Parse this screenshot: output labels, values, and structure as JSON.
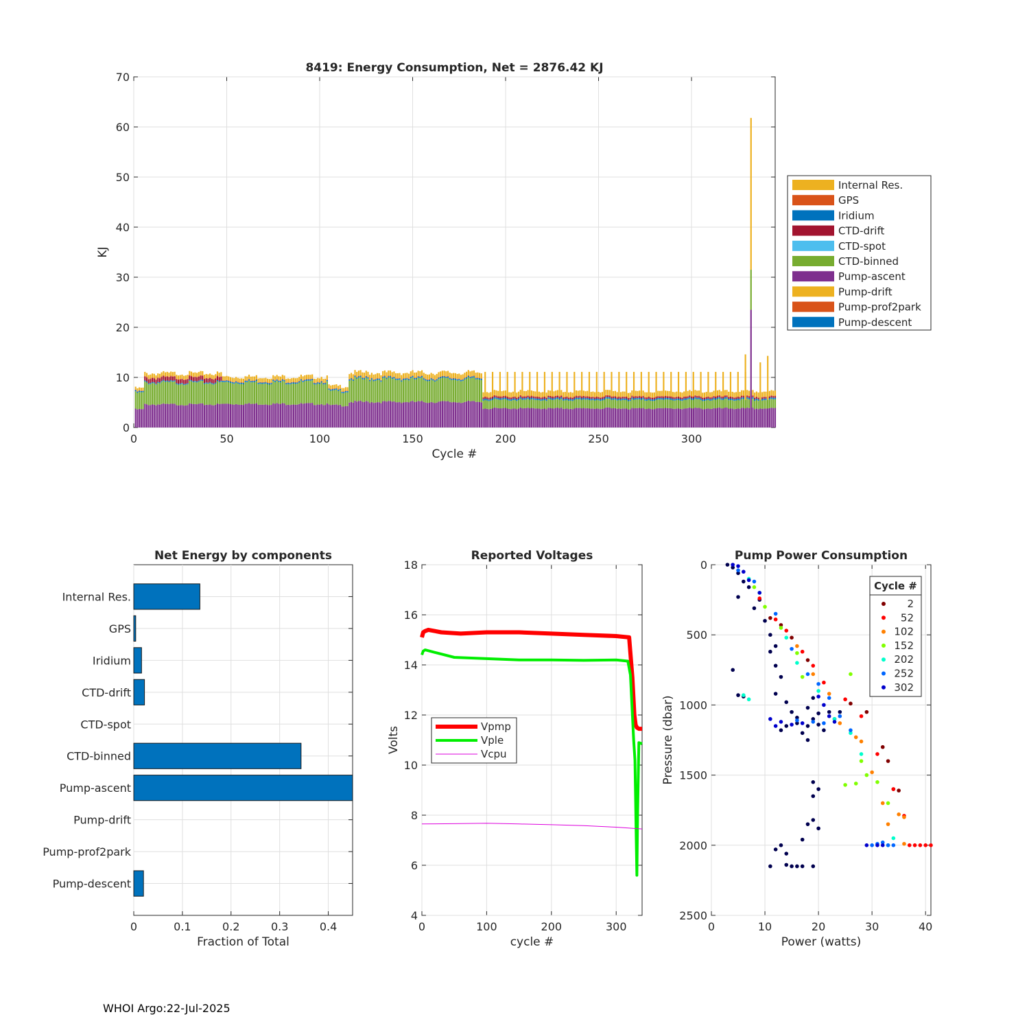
{
  "footer": "WHOI Argo:22-Jul-2025",
  "chart_data": [
    {
      "id": "energy",
      "type": "bar",
      "stacked": true,
      "title": "8419: Energy Consumption,  Net = 2876.42 KJ",
      "xlabel": "Cycle #",
      "ylabel": "KJ",
      "xlim": [
        0,
        345
      ],
      "ylim": [
        0,
        70
      ],
      "xticks": [
        0,
        50,
        100,
        150,
        200,
        250,
        300
      ],
      "yticks": [
        0,
        10,
        20,
        30,
        40,
        50,
        60,
        70
      ],
      "grid": true,
      "legend_placement": "outside-right",
      "series": [
        {
          "name": "Internal Res.",
          "color": "#EDB120"
        },
        {
          "name": "GPS",
          "color": "#D95319"
        },
        {
          "name": "Iridium",
          "color": "#0072BD"
        },
        {
          "name": "CTD-drift",
          "color": "#A2142F"
        },
        {
          "name": "CTD-spot",
          "color": "#4DBEEE"
        },
        {
          "name": "CTD-binned",
          "color": "#77AC30"
        },
        {
          "name": "Pump-ascent",
          "color": "#7E2F8E"
        },
        {
          "name": "Pump-drift",
          "color": "#EDB120"
        },
        {
          "name": "Pump-prof2park",
          "color": "#D95319"
        },
        {
          "name": "Pump-descent",
          "color": "#0072BD"
        }
      ],
      "segments": [
        {
          "cycles": [
            1,
            5
          ],
          "pump_ascent": 3.6,
          "ctd_binned": 3.3,
          "ctd_drift": 0.0,
          "iridium": 0.25,
          "gps": 0.1,
          "internal_res": 0.55,
          "total": 7.8
        },
        {
          "cycles": [
            6,
            47
          ],
          "pump_ascent": 4.6,
          "ctd_binned": 4.3,
          "ctd_drift": 0.8,
          "iridium": 0.2,
          "gps": 0.1,
          "internal_res": 0.8,
          "total": 10.8
        },
        {
          "cycles": [
            48,
            104
          ],
          "pump_ascent": 4.7,
          "ctd_binned": 4.3,
          "ctd_drift": 0.0,
          "iridium": 0.25,
          "gps": 0.1,
          "internal_res": 0.8,
          "total": 10.2
        },
        {
          "cycles": [
            105,
            115
          ],
          "pump_ascent": 4.4,
          "ctd_binned": 2.8,
          "ctd_drift": 0.0,
          "iridium": 0.25,
          "gps": 0.1,
          "internal_res": 0.7,
          "total": 8.3
        },
        {
          "cycles": [
            116,
            187
          ],
          "pump_ascent": 5.1,
          "ctd_binned": 4.5,
          "ctd_drift": 0.0,
          "iridium": 0.25,
          "gps": 0.1,
          "internal_res": 1.0,
          "total": 11.0
        },
        {
          "cycles": [
            188,
            345
          ],
          "pump_ascent": 3.8,
          "ctd_binned": 1.7,
          "ctd_drift": 0.3,
          "iridium": 0.3,
          "gps": 0.1,
          "internal_res": 1.0,
          "total": 7.2
        }
      ],
      "spikes": [
        {
          "cycle": 332,
          "pump_ascent": 23.5,
          "ctd_binned": 8.0,
          "internal_res": 30.3,
          "total": 61.8
        },
        {
          "cycle": 329,
          "total": 14.6
        },
        {
          "cycle": 341,
          "total": 14.3
        },
        {
          "cycle": 337,
          "total": 13.0
        }
      ],
      "long_cycle_totals": {
        "cycles": "189-330 every 4th",
        "total": 10.8
      }
    },
    {
      "id": "components",
      "type": "bar",
      "orientation": "horizontal",
      "title": "Net Energy by components",
      "xlabel": "Fraction of Total",
      "xlim": [
        0,
        0.45
      ],
      "xticks": [
        0,
        0.1,
        0.2,
        0.3,
        0.4
      ],
      "xtick_labels": [
        "0",
        "0.1",
        "0.2",
        "0.3",
        "0.4"
      ],
      "grid": true,
      "color": "#0072BD",
      "categories": [
        "Internal Res.",
        "GPS",
        "Iridium",
        "CTD-drift",
        "CTD-spot",
        "CTD-binned",
        "Pump-ascent",
        "Pump-drift",
        "Pump-prof2park",
        "Pump-descent"
      ],
      "values": [
        0.136,
        0.004,
        0.016,
        0.022,
        0.0,
        0.344,
        0.46,
        0.0,
        0.0,
        0.02
      ]
    },
    {
      "id": "voltages",
      "type": "line",
      "title": "Reported Voltages",
      "xlabel": "cycle #",
      "ylabel": "Volts",
      "xlim": [
        0,
        340
      ],
      "ylim": [
        4,
        18
      ],
      "xticks": [
        0,
        100,
        200,
        300
      ],
      "yticks": [
        4,
        6,
        8,
        10,
        12,
        14,
        16,
        18
      ],
      "grid": true,
      "legend_placement": "middle-left",
      "series": [
        {
          "name": "Vpmp",
          "color": "#FF0000",
          "width": 6,
          "x": [
            0,
            2,
            5,
            10,
            30,
            60,
            100,
            150,
            200,
            250,
            300,
            320,
            325,
            328,
            330,
            332,
            335,
            340
          ],
          "y": [
            15.1,
            15.3,
            15.35,
            15.4,
            15.3,
            15.25,
            15.3,
            15.3,
            15.25,
            15.2,
            15.15,
            15.1,
            13.5,
            12.0,
            11.6,
            11.5,
            11.45,
            11.45
          ]
        },
        {
          "name": "Vple",
          "color": "#00EE00",
          "width": 4,
          "x": [
            0,
            2,
            5,
            20,
            50,
            100,
            150,
            200,
            250,
            300,
            318,
            322,
            327,
            329,
            331,
            332,
            333,
            335,
            340
          ],
          "y": [
            14.4,
            14.55,
            14.6,
            14.5,
            14.3,
            14.25,
            14.2,
            14.2,
            14.18,
            14.2,
            14.15,
            13.6,
            11.0,
            10.2,
            7.0,
            5.6,
            8.0,
            10.9,
            10.85
          ]
        },
        {
          "name": "Vcpu",
          "color": "#DD00DD",
          "width": 1,
          "x": [
            0,
            50,
            100,
            150,
            200,
            250,
            300,
            340
          ],
          "y": [
            7.65,
            7.66,
            7.68,
            7.65,
            7.62,
            7.58,
            7.52,
            7.45
          ]
        }
      ]
    },
    {
      "id": "pump_power",
      "type": "scatter",
      "title": "Pump Power Consumption",
      "xlabel": "Power (watts)",
      "ylabel": "Pressure (dbar)",
      "xlim": [
        0,
        41
      ],
      "ylim": [
        0,
        2500
      ],
      "y_reversed": true,
      "xticks": [
        0,
        10,
        20,
        30,
        40
      ],
      "yticks": [
        0,
        500,
        1000,
        1500,
        2000,
        2500
      ],
      "grid": true,
      "legend_title": "Cycle #",
      "legend_placement": "top-right",
      "legend": [
        {
          "name": "2",
          "color": "#800000"
        },
        {
          "name": "52",
          "color": "#FF0000"
        },
        {
          "name": "102",
          "color": "#FF8000"
        },
        {
          "name": "152",
          "color": "#80FF00"
        },
        {
          "name": "202",
          "color": "#00FFCC"
        },
        {
          "name": "252",
          "color": "#0066FF"
        },
        {
          "name": "302",
          "color": "#0000CC"
        }
      ],
      "groups": [
        {
          "color": "#00004F",
          "points": [
            [
              3,
              0
            ],
            [
              4,
              20
            ],
            [
              5,
              60
            ],
            [
              6,
              120
            ],
            [
              7,
              160
            ],
            [
              5,
              230
            ],
            [
              9,
              250
            ],
            [
              8,
              310
            ],
            [
              10,
              400
            ],
            [
              11,
              500
            ],
            [
              12,
              580
            ],
            [
              11,
              620
            ],
            [
              12,
              720
            ],
            [
              13,
              800
            ],
            [
              12,
              920
            ],
            [
              14,
              980
            ],
            [
              15,
              1050
            ],
            [
              16,
              1130
            ],
            [
              14,
              1150
            ],
            [
              13,
              1180
            ],
            [
              17,
              1200
            ],
            [
              18,
              1150
            ],
            [
              20,
              1140
            ],
            [
              19,
              1100
            ],
            [
              16,
              1090
            ],
            [
              18,
              1020
            ],
            [
              19,
              950
            ],
            [
              20,
              1060
            ],
            [
              21,
              1180
            ],
            [
              18,
              1250
            ],
            [
              19,
              1550
            ],
            [
              20,
              1600
            ],
            [
              19,
              1650
            ],
            [
              19,
              1820
            ],
            [
              18,
              1850
            ],
            [
              20,
              1880
            ],
            [
              17,
              1960
            ],
            [
              13,
              2000
            ],
            [
              12,
              2030
            ],
            [
              14,
              2060
            ],
            [
              11,
              2150
            ],
            [
              14,
              2140
            ],
            [
              15,
              2150
            ],
            [
              16,
              2150
            ],
            [
              17,
              2150
            ],
            [
              19,
              2150
            ],
            [
              4,
              750
            ],
            [
              5,
              930
            ],
            [
              6,
              940
            ],
            [
              22,
              1050
            ],
            [
              24,
              1050
            ],
            [
              23,
              1100
            ]
          ]
        },
        {
          "color": "#800000",
          "points": [
            [
              11,
              380
            ],
            [
              13,
              430
            ],
            [
              15,
              520
            ],
            [
              18,
              680
            ],
            [
              26,
              990
            ],
            [
              29,
              1050
            ],
            [
              32,
              1300
            ],
            [
              33,
              1400
            ],
            [
              34,
              1600
            ],
            [
              35,
              1610
            ]
          ]
        },
        {
          "color": "#FF0000",
          "points": [
            [
              9,
              240
            ],
            [
              12,
              390
            ],
            [
              14,
              470
            ],
            [
              17,
              620
            ],
            [
              19,
              720
            ],
            [
              21,
              840
            ],
            [
              25,
              960
            ],
            [
              28,
              1080
            ],
            [
              31,
              1350
            ],
            [
              34,
              1600
            ],
            [
              37,
              2000
            ],
            [
              38,
              2000
            ],
            [
              39,
              2000
            ],
            [
              40,
              2000
            ],
            [
              41,
              2000
            ],
            [
              36,
              1790
            ]
          ]
        },
        {
          "color": "#FF8000",
          "points": [
            [
              16,
              580
            ],
            [
              19,
              780
            ],
            [
              22,
              920
            ],
            [
              24,
              1130
            ],
            [
              27,
              1230
            ],
            [
              30,
              1480
            ],
            [
              32,
              1700
            ],
            [
              35,
              1780
            ],
            [
              36,
              1800
            ],
            [
              33,
              1850
            ],
            [
              36,
              1990
            ],
            [
              28,
              1260
            ]
          ]
        },
        {
          "color": "#80FF00",
          "points": [
            [
              8,
              160
            ],
            [
              10,
              300
            ],
            [
              13,
              450
            ],
            [
              16,
              630
            ],
            [
              17,
              800
            ],
            [
              26,
              780
            ],
            [
              28,
              1400
            ],
            [
              29,
              1500
            ],
            [
              31,
              1550
            ],
            [
              33,
              1700
            ],
            [
              27,
              1560
            ],
            [
              25,
              1570
            ]
          ]
        },
        {
          "color": "#00FFCC",
          "points": [
            [
              7,
              100
            ],
            [
              9,
              200
            ],
            [
              14,
              520
            ],
            [
              16,
              700
            ],
            [
              20,
              900
            ],
            [
              23,
              1100
            ],
            [
              26,
              1200
            ],
            [
              28,
              1350
            ],
            [
              6,
              930
            ],
            [
              7,
              960
            ],
            [
              34,
              1950
            ],
            [
              33,
              2000
            ]
          ]
        },
        {
          "color": "#0066FF",
          "points": [
            [
              5,
              40
            ],
            [
              8,
              120
            ],
            [
              12,
              350
            ],
            [
              15,
              600
            ],
            [
              18,
              780
            ],
            [
              20,
              850
            ],
            [
              22,
              950
            ],
            [
              24,
              1080
            ],
            [
              26,
              1180
            ],
            [
              21,
              1130
            ],
            [
              19,
              1120
            ],
            [
              16,
              1110
            ],
            [
              30,
              2000
            ],
            [
              31,
              1990
            ],
            [
              32,
              1980
            ],
            [
              33,
              2000
            ],
            [
              34,
              2000
            ]
          ]
        },
        {
          "color": "#0000CC",
          "points": [
            [
              4,
              0
            ],
            [
              5,
              10
            ],
            [
              6,
              50
            ],
            [
              7,
              110
            ],
            [
              9,
              200
            ],
            [
              20,
              940
            ],
            [
              21,
              1000
            ],
            [
              22,
              1080
            ],
            [
              23,
              1120
            ],
            [
              17,
              1130
            ],
            [
              15,
              1140
            ],
            [
              13,
              1120
            ],
            [
              11,
              1100
            ],
            [
              12,
              1150
            ],
            [
              29,
              2000
            ],
            [
              31,
              2000
            ],
            [
              32,
              2000
            ]
          ]
        }
      ]
    }
  ]
}
